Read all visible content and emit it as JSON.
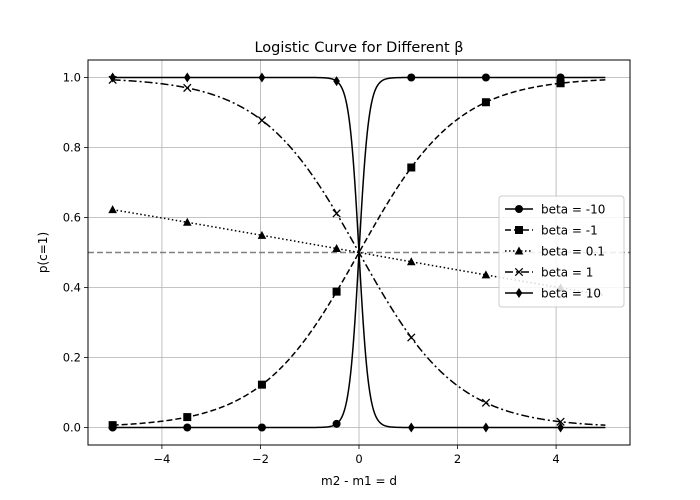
{
  "chart_data": {
    "type": "line",
    "title": "Logistic Curve for Different β",
    "xlabel": "m2 - m1 = d",
    "ylabel": "p(c=1)",
    "xlim": [
      -5.5,
      5.5
    ],
    "ylim": [
      -0.05,
      1.05
    ],
    "xticks": [
      -4,
      -2,
      0,
      2,
      4
    ],
    "xtick_labels": [
      "−4",
      "−2",
      "0",
      "2",
      "4"
    ],
    "yticks": [
      0.0,
      0.2,
      0.4,
      0.6,
      0.8,
      1.0
    ],
    "ytick_labels": [
      "0.0",
      "0.2",
      "0.4",
      "0.6",
      "0.8",
      "1.0"
    ],
    "grid": true,
    "legend_position": "center-right",
    "x_domain": [
      -5,
      5
    ],
    "marker_x": [
      -5.0,
      -3.485,
      -1.97,
      -0.455,
      1.061,
      2.576,
      4.091
    ],
    "reference_line": {
      "y": 0.5,
      "style": "dashed",
      "color": "#808080"
    },
    "series": [
      {
        "name": "beta = -10",
        "beta": -10,
        "line_style": "solid",
        "marker": "circle",
        "color": "#000000"
      },
      {
        "name": "beta = -1",
        "beta": -1,
        "line_style": "dashed",
        "marker": "square",
        "color": "#000000"
      },
      {
        "name": "beta = 0.1",
        "beta": 0.1,
        "line_style": "dotted",
        "marker": "triangle",
        "color": "#000000"
      },
      {
        "name": "beta = 1",
        "beta": 1,
        "line_style": "dashdot",
        "marker": "x",
        "color": "#000000"
      },
      {
        "name": "beta = 10",
        "beta": 10,
        "line_style": "solid",
        "marker": "diamond",
        "color": "#000000"
      }
    ]
  }
}
